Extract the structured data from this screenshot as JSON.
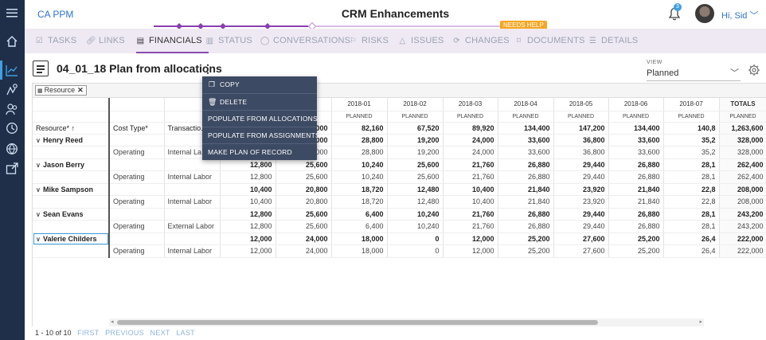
{
  "app": {
    "brand": "CA PPM",
    "page_title": "CRM Enhancements",
    "user_greeting": "Hi, Sid",
    "notification_count": "3",
    "status_badge": "NEEDS HELP"
  },
  "tabs": [
    {
      "label": "TASKS",
      "icon": "tasks-icon"
    },
    {
      "label": "LINKS",
      "icon": "link-icon"
    },
    {
      "label": "FINANCIALS",
      "icon": "financials-icon",
      "active": true
    },
    {
      "label": "STATUS",
      "icon": "status-chart-icon"
    },
    {
      "label": "CONVERSATIONS",
      "icon": "chat-icon"
    },
    {
      "label": "RISKS",
      "icon": "flag-icon"
    },
    {
      "label": "ISSUES",
      "icon": "warning-icon"
    },
    {
      "label": "CHANGES",
      "icon": "changes-icon"
    },
    {
      "label": "DOCUMENTS",
      "icon": "document-tag-icon"
    },
    {
      "label": "DETAILS",
      "icon": "details-list-icon"
    }
  ],
  "plan": {
    "title": "04_01_18 Plan from allocations",
    "view_label": "VIEW",
    "view_value": "Planned"
  },
  "filter": {
    "chip_label": "Resource"
  },
  "menu": [
    {
      "label": "COPY",
      "icon": "copy-icon"
    },
    {
      "label": "DELETE",
      "icon": "trash-icon"
    },
    {
      "label": "POPULATE FROM ALLOCATIONS"
    },
    {
      "label": "POPULATE FROM ASSIGNMENTS"
    },
    {
      "label": "MAKE PLAN OF RECORD"
    }
  ],
  "grid": {
    "headers": {
      "resource": "Resource*",
      "cost_type": "Cost Type*",
      "transaction": "Transactio...",
      "periods": [
        "2018-01",
        "2018-02",
        "2018-03",
        "2018-04",
        "2018-05",
        "2018-06",
        "2018-07"
      ],
      "totals": "TOTALS",
      "sub_label": "PLANNED"
    },
    "column_totals": {
      "c3": "",
      "c4": "000",
      "periods": [
        "82,160",
        "67,520",
        "89,920",
        "134,400",
        "147,200",
        "134,400",
        "140,8"
      ],
      "total": "1,263,600"
    },
    "rows": [
      {
        "kind": "res",
        "name": "Henry Reed",
        "c3": "",
        "c4": "000",
        "p": [
          "28,800",
          "19,200",
          "24,000",
          "33,600",
          "36,800",
          "33,600",
          "35,2"
        ],
        "t": "328,000"
      },
      {
        "kind": "det",
        "cost": "Operating",
        "trans": "Internal La",
        "c3": "",
        "c4": "000",
        "p": [
          "28,800",
          "19,200",
          "24,000",
          "33,600",
          "36,800",
          "33,600",
          "35,2"
        ],
        "t": "328,000"
      },
      {
        "kind": "res",
        "name": "Jason Berry",
        "c3": "12,800",
        "c4": "25,600",
        "p": [
          "10,240",
          "25,600",
          "21,760",
          "26,880",
          "29,440",
          "26,880",
          "28,1"
        ],
        "t": "262,400"
      },
      {
        "kind": "det",
        "cost": "Operating",
        "trans": "Internal Labor",
        "c3": "12,800",
        "c4": "25,600",
        "p": [
          "10,240",
          "25,600",
          "21,760",
          "26,880",
          "29,440",
          "26,880",
          "28,1"
        ],
        "t": "262,400"
      },
      {
        "kind": "res",
        "name": "Mike Sampson",
        "c3": "10,400",
        "c4": "20,800",
        "p": [
          "18,720",
          "12,480",
          "10,400",
          "21,840",
          "23,920",
          "21,840",
          "22,8"
        ],
        "t": "208,000"
      },
      {
        "kind": "det",
        "cost": "Operating",
        "trans": "Internal Labor",
        "c3": "10,400",
        "c4": "20,800",
        "p": [
          "18,720",
          "12,480",
          "10,400",
          "21,840",
          "23,920",
          "21,840",
          "22,8"
        ],
        "t": "208,000"
      },
      {
        "kind": "res",
        "name": "Sean Evans",
        "c3": "12,800",
        "c4": "25,600",
        "p": [
          "6,400",
          "10,240",
          "21,760",
          "26,880",
          "29,440",
          "26,880",
          "28,1"
        ],
        "t": "243,200"
      },
      {
        "kind": "det",
        "cost": "Operating",
        "trans": "External Labor",
        "c3": "12,800",
        "c4": "25,600",
        "p": [
          "6,400",
          "10,240",
          "21,760",
          "26,880",
          "29,440",
          "26,880",
          "28,1"
        ],
        "t": "243,200"
      },
      {
        "kind": "res",
        "name": "Valerie Childers",
        "c3": "12,000",
        "c4": "24,000",
        "p": [
          "18,000",
          "0",
          "12,000",
          "25,200",
          "27,600",
          "25,200",
          "26,4"
        ],
        "t": "222,000",
        "selected": true
      },
      {
        "kind": "det",
        "cost": "Operating",
        "trans": "Internal Labor",
        "c3": "12,000",
        "c4": "24,000",
        "p": [
          "18,000",
          "0",
          "12,000",
          "25,200",
          "27,600",
          "25,200",
          "26,4"
        ],
        "t": "222,000"
      }
    ]
  },
  "pager": {
    "summary": "1 - 10 of 10",
    "first": "FIRST",
    "previous": "PREVIOUS",
    "next": "NEXT",
    "last": "LAST"
  }
}
